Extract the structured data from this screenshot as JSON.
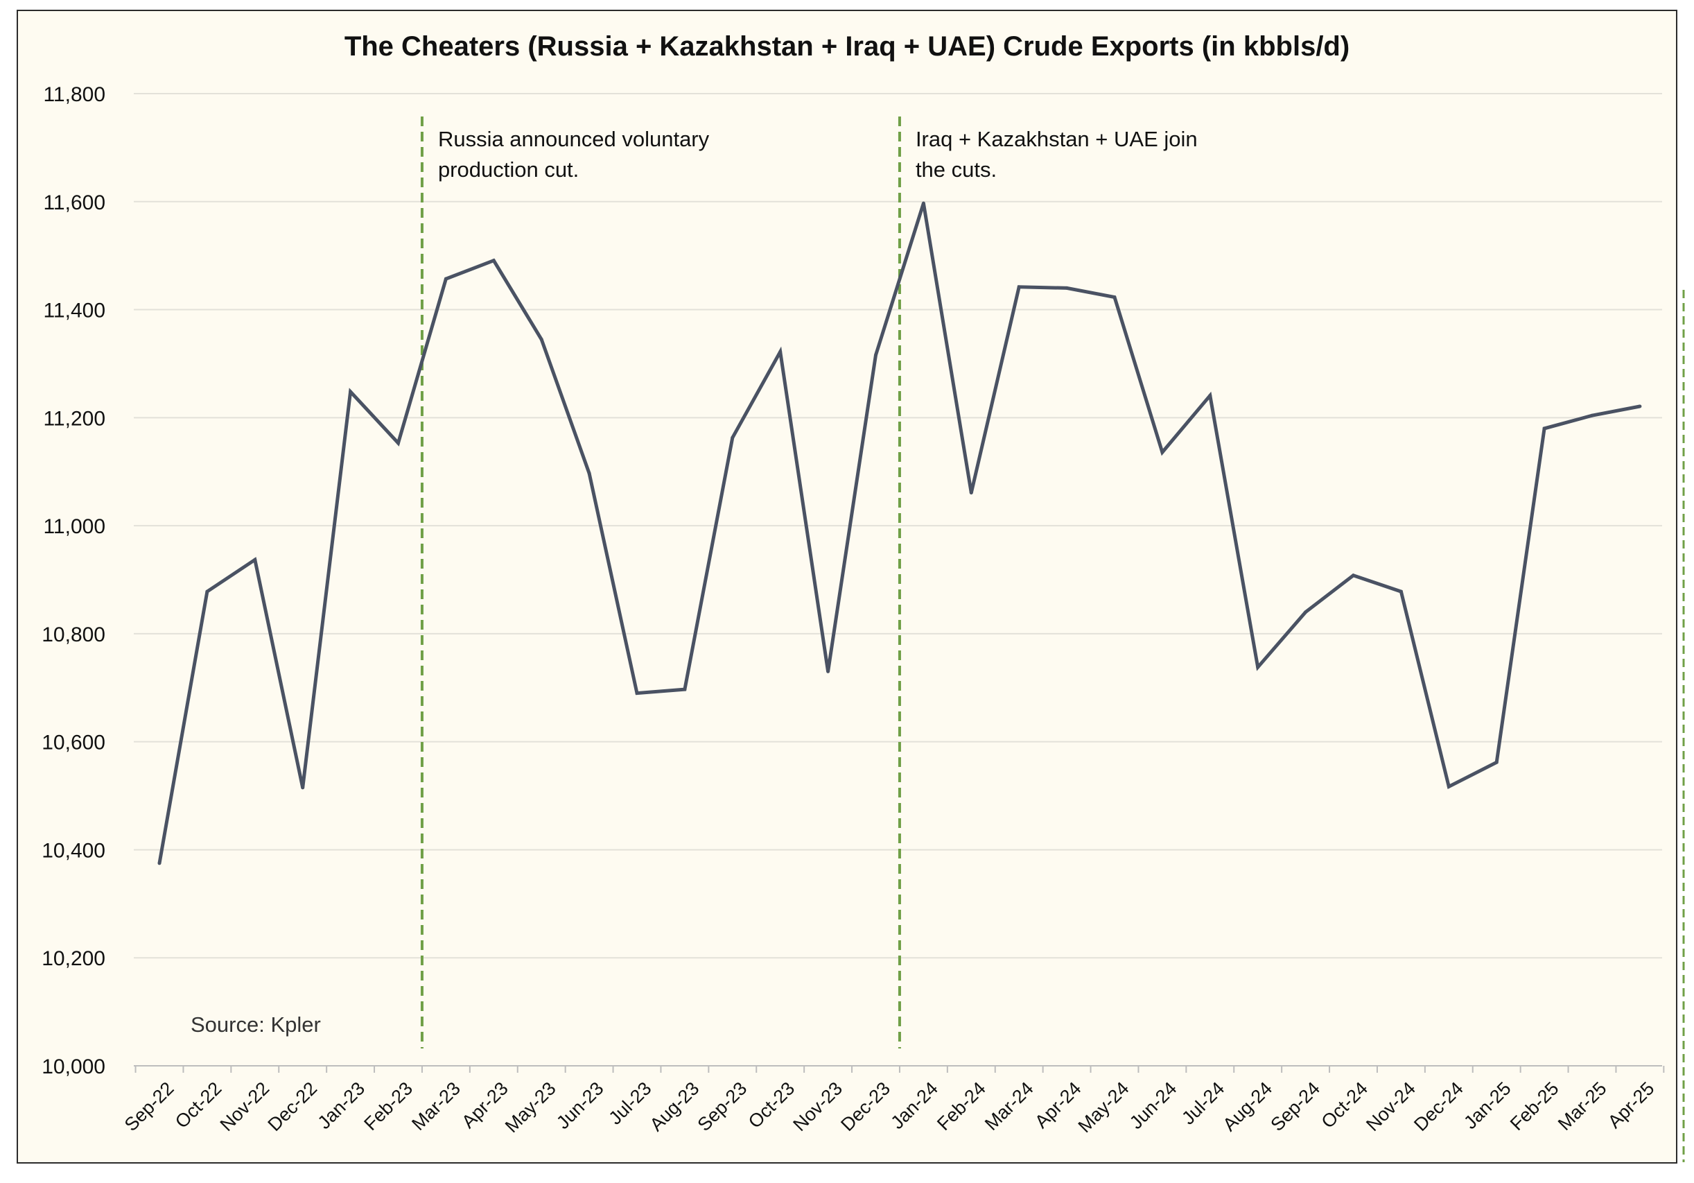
{
  "chart_data": {
    "type": "line",
    "title": "The Cheaters (Russia + Kazakhstan + Iraq + UAE) Crude Exports (in kbbls/d)",
    "xlabel": "",
    "ylabel": "",
    "ylim": [
      10000,
      11800
    ],
    "y_ticks": [
      10000,
      10200,
      10400,
      10600,
      10800,
      11000,
      11200,
      11400,
      11600,
      11800
    ],
    "y_tick_labels": [
      "10,000",
      "10,200",
      "10,400",
      "10,600",
      "10,800",
      "11,000",
      "11,200",
      "11,400",
      "11,600",
      "11,800"
    ],
    "grid": true,
    "legend": "none",
    "categories": [
      "Sep-22",
      "Oct-22",
      "Nov-22",
      "Dec-22",
      "Jan-23",
      "Feb-23",
      "Mar-23",
      "Apr-23",
      "May-23",
      "Jun-23",
      "Jul-23",
      "Aug-23",
      "Sep-23",
      "Oct-23",
      "Nov-23",
      "Dec-23",
      "Jan-24",
      "Feb-24",
      "Mar-24",
      "Apr-24",
      "May-24",
      "Jun-24",
      "Jul-24",
      "Aug-24",
      "Sep-24",
      "Oct-24",
      "Nov-24",
      "Dec-24",
      "Jan-25",
      "Feb-25",
      "Mar-25",
      "Apr-25"
    ],
    "series": [
      {
        "values": [
          10375,
          10878,
          10937,
          10515,
          11248,
          11153,
          11457,
          11491,
          11345,
          11097,
          10690,
          10697,
          11163,
          11322,
          10730,
          11316,
          11597,
          11061,
          11442,
          11440,
          11423,
          11136,
          11241,
          10738,
          10840,
          10908,
          10878,
          10517,
          10562,
          11180,
          11204,
          11221
        ],
        "color": "#4a5263"
      }
    ],
    "annotations": [
      {
        "type": "vline",
        "position": "Mar-23",
        "lines": [
          "Russia announced voluntary",
          "production cut."
        ]
      },
      {
        "type": "vline",
        "position": "Jan-24",
        "lines": [
          "Iraq + Kazakhstan + UAE join",
          "the cuts."
        ]
      }
    ],
    "source": "Source: Kpler"
  },
  "colors": {
    "line": "#4a5263",
    "vline": "#70a047",
    "grid": "#e3e1d9",
    "axis": "#bdbdbd",
    "background": "#fefbf1"
  }
}
